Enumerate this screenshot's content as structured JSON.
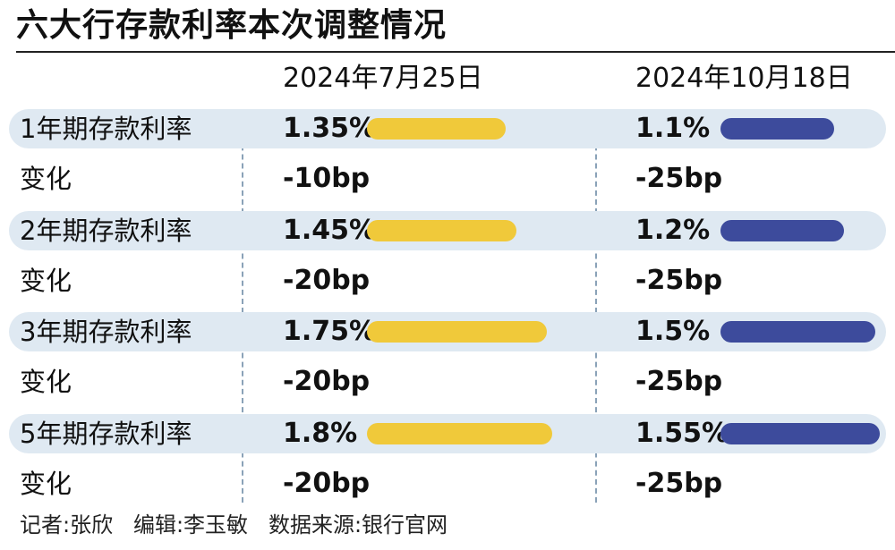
{
  "title": "六大行存款利率本次调整情况",
  "columns": [
    "2024年7月25日",
    "2024年10月18日"
  ],
  "colors": {
    "jul_bar": "#f0c93a",
    "oct_bar": "#3d4b9c",
    "band": "#dfe9f2"
  },
  "rows": [
    {
      "label": "1年期存款利率",
      "jul": "1.35%",
      "oct": "1.1%",
      "change_label": "变化",
      "jul_change": "-10bp",
      "oct_change": "-25bp"
    },
    {
      "label": "2年期存款利率",
      "jul": "1.45%",
      "oct": "1.2%",
      "change_label": "变化",
      "jul_change": "-20bp",
      "oct_change": "-25bp"
    },
    {
      "label": "3年期存款利率",
      "jul": "1.75%",
      "oct": "1.5%",
      "change_label": "变化",
      "jul_change": "-20bp",
      "oct_change": "-25bp"
    },
    {
      "label": "5年期存款利率",
      "jul": "1.8%",
      "oct": "1.55%",
      "change_label": "变化",
      "jul_change": "-20bp",
      "oct_change": "-25bp"
    }
  ],
  "footer": "记者:张欣   编辑:李玉敏   数据来源:银行官网",
  "chart_data": {
    "type": "bar",
    "title": "六大行存款利率本次调整情况",
    "categories": [
      "1年期存款利率",
      "2年期存款利率",
      "3年期存款利率",
      "5年期存款利率"
    ],
    "series": [
      {
        "name": "2024年7月25日",
        "values": [
          1.35,
          1.45,
          1.75,
          1.8
        ]
      },
      {
        "name": "2024年10月18日",
        "values": [
          1.1,
          1.2,
          1.5,
          1.55
        ]
      }
    ],
    "changes": {
      "2024年7月25日": [
        "-10bp",
        "-20bp",
        "-20bp",
        "-20bp"
      ],
      "2024年10月18日": [
        "-25bp",
        "-25bp",
        "-25bp",
        "-25bp"
      ]
    },
    "xlabel": "",
    "ylabel": ""
  }
}
